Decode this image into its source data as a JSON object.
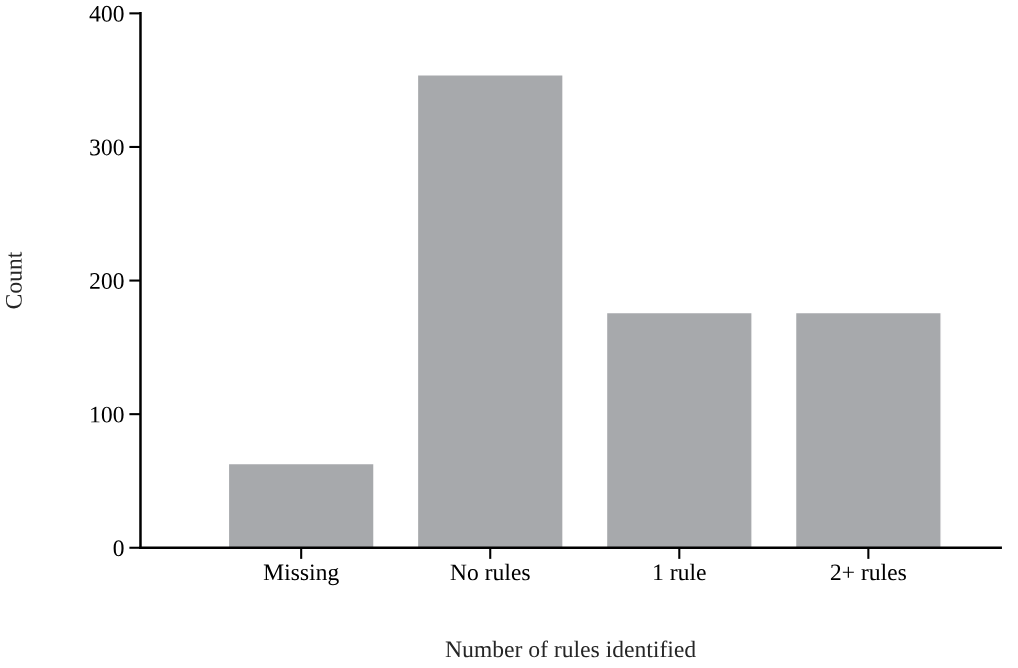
{
  "chart_data": {
    "type": "bar",
    "xlabel": "Number of rules identified",
    "ylabel": "Count",
    "categories": [
      "Missing",
      "No rules",
      "1 rule",
      "2+ rules"
    ],
    "values": [
      63,
      354,
      176,
      176
    ],
    "color": "#a7a9ac",
    "ylim": [
      0,
      400
    ],
    "yticks": [
      0,
      100,
      200,
      300,
      400
    ],
    "grid": false
  }
}
